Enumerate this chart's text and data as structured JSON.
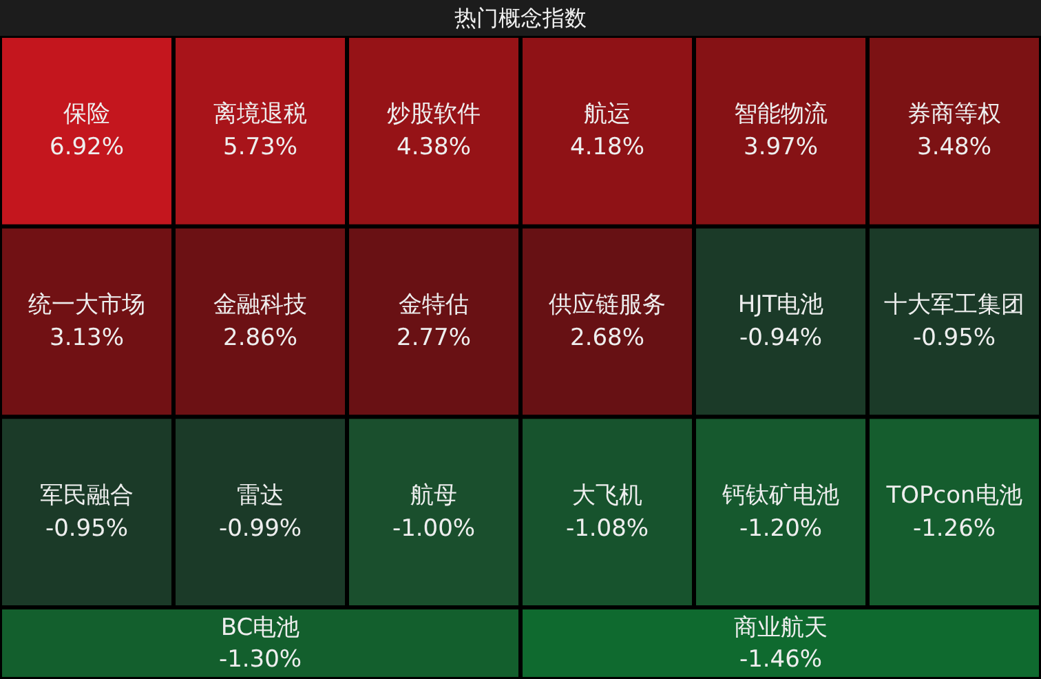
{
  "chart_data": {
    "type": "other",
    "title": "热门概念指数",
    "categories": [
      "保险",
      "离境退税",
      "炒股软件",
      "航运",
      "智能物流",
      "券商等权",
      "统一大市场",
      "金融科技",
      "金特估",
      "供应链服务",
      "HJT电池",
      "十大军工集团",
      "军民融合",
      "雷达",
      "航母",
      "大飞机",
      "钙钛矿电池",
      "TOPcon电池",
      "BC电池",
      "商业航天"
    ],
    "values": [
      6.92,
      5.73,
      4.38,
      4.18,
      3.97,
      3.48,
      3.13,
      2.86,
      2.77,
      2.68,
      -0.94,
      -0.95,
      -0.95,
      -0.99,
      -1.0,
      -1.08,
      -1.2,
      -1.26,
      -1.3,
      -1.46
    ],
    "value_labels": [
      "6.92%",
      "5.73%",
      "4.38%",
      "4.18%",
      "3.97%",
      "3.48%",
      "3.13%",
      "2.86%",
      "2.77%",
      "2.68%",
      "-0.94%",
      "-0.95%",
      "-0.95%",
      "-0.99%",
      "-1.00%",
      "-1.08%",
      "-1.20%",
      "-1.26%",
      "-1.30%",
      "-1.46%"
    ],
    "colors": [
      "#c4161e",
      "#a8141a",
      "#961317",
      "#8f1216",
      "#861215",
      "#7c1214",
      "#711114",
      "#6c1114",
      "#691114",
      "#671114",
      "#1b3a28",
      "#1b3a28",
      "#1b3a28",
      "#1b3a28",
      "#1a4f2d",
      "#17532d",
      "#16592e",
      "#155d2e",
      "#135f2d",
      "#0f6a2f"
    ]
  }
}
